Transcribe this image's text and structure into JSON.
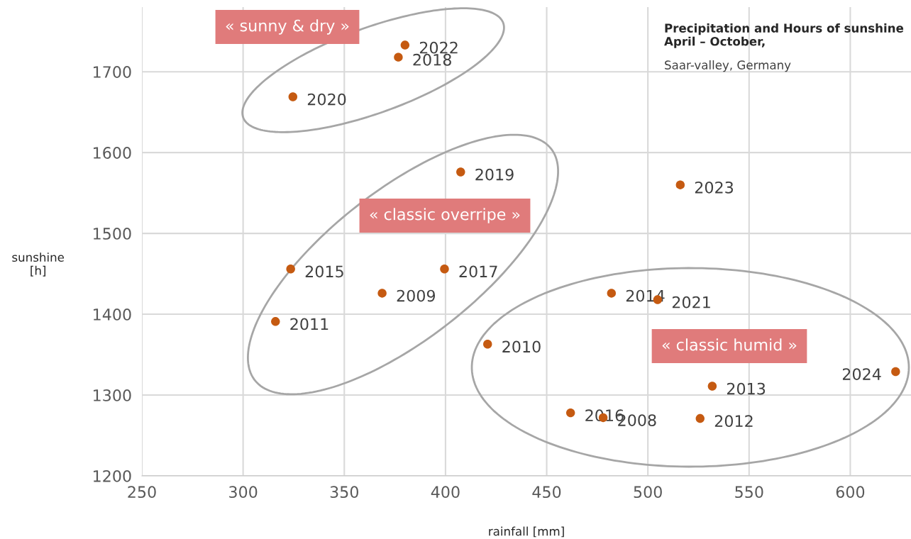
{
  "chart_data": {
    "type": "scatter",
    "title": "Precipitation and Hours of sunshine\nApril – October,",
    "subtitle": "Saar-valley, Germany",
    "xlabel": "rainfall [mm]",
    "ylabel": "sunshine\n[h]",
    "x": [
      380,
      376.7,
      324.6,
      407.5,
      516,
      323.5,
      399.5,
      368.7,
      316,
      482,
      504.8,
      420.8,
      622.4,
      531.8,
      461.8,
      477.9,
      525.8
    ],
    "values": [
      1733,
      1718,
      1669,
      1576,
      1560,
      1456,
      1456,
      1426,
      1391,
      1426,
      1418,
      1363,
      1329,
      1311,
      1278,
      1272,
      1271
    ],
    "color": "#c55a11",
    "marker": "circle",
    "xlim": [
      250,
      630
    ],
    "ylim": [
      1200,
      1780
    ],
    "xticks": [
      250,
      300,
      350,
      400,
      450,
      500,
      550,
      600
    ],
    "yticks": [
      1200,
      1300,
      1400,
      1500,
      1600,
      1700
    ],
    "grid": true,
    "annotations": [
      "« sunny & dry »",
      "« classic overripe »",
      "« classic humid »",
      {
        "text": "2022",
        "x": 380,
        "y": 1733
      },
      {
        "text": "2018",
        "x": 376.7,
        "y": 1718
      },
      {
        "text": "2020",
        "x": 324.6,
        "y": 1669
      },
      {
        "text": "2019",
        "x": 407.5,
        "y": 1576
      },
      {
        "text": "2023",
        "x": 516,
        "y": 1560
      },
      {
        "text": "2015",
        "x": 323.5,
        "y": 1456
      },
      {
        "text": "2017",
        "x": 399.5,
        "y": 1456
      },
      {
        "text": "2009",
        "x": 368.7,
        "y": 1426
      },
      {
        "text": "2011",
        "x": 316,
        "y": 1391
      },
      {
        "text": "2014",
        "x": 482,
        "y": 1426
      },
      {
        "text": "2021",
        "x": 504.8,
        "y": 1418
      },
      {
        "text": "2010",
        "x": 420.8,
        "y": 1363
      },
      {
        "text": "2024",
        "x": 622.4,
        "y": 1329
      },
      {
        "text": "2013",
        "x": 531.8,
        "y": 1311
      },
      {
        "text": "2016",
        "x": 461.8,
        "y": 1278
      },
      {
        "text": "2008",
        "x": 477.9,
        "y": 1272
      },
      {
        "text": "2012",
        "x": 525.8,
        "y": 1271
      }
    ]
  }
}
